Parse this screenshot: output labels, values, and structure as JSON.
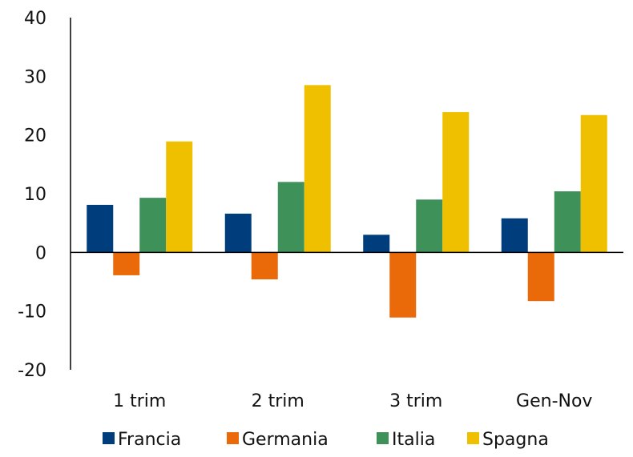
{
  "chart_data": {
    "type": "bar",
    "title": "",
    "xlabel": "",
    "ylabel": "",
    "ylim": [
      -20,
      40
    ],
    "yticks": [
      40,
      30,
      20,
      10,
      0,
      -10,
      -20
    ],
    "grid": false,
    "legend_position": "bottom",
    "categories": [
      "1 trim",
      "2 trim",
      "3 trim",
      "Gen-Nov"
    ],
    "series": [
      {
        "name": "Francia",
        "color": "#003d7c",
        "values": [
          8.1,
          6.6,
          3.0,
          5.8
        ]
      },
      {
        "name": "Germania",
        "color": "#ea6a0a",
        "values": [
          -3.9,
          -4.6,
          -11.1,
          -8.3
        ]
      },
      {
        "name": "Italia",
        "color": "#3f915a",
        "values": [
          9.3,
          12.0,
          9.0,
          10.4
        ]
      },
      {
        "name": "Spagna",
        "color": "#efc000",
        "values": [
          18.9,
          28.5,
          23.9,
          23.4
        ]
      }
    ]
  }
}
